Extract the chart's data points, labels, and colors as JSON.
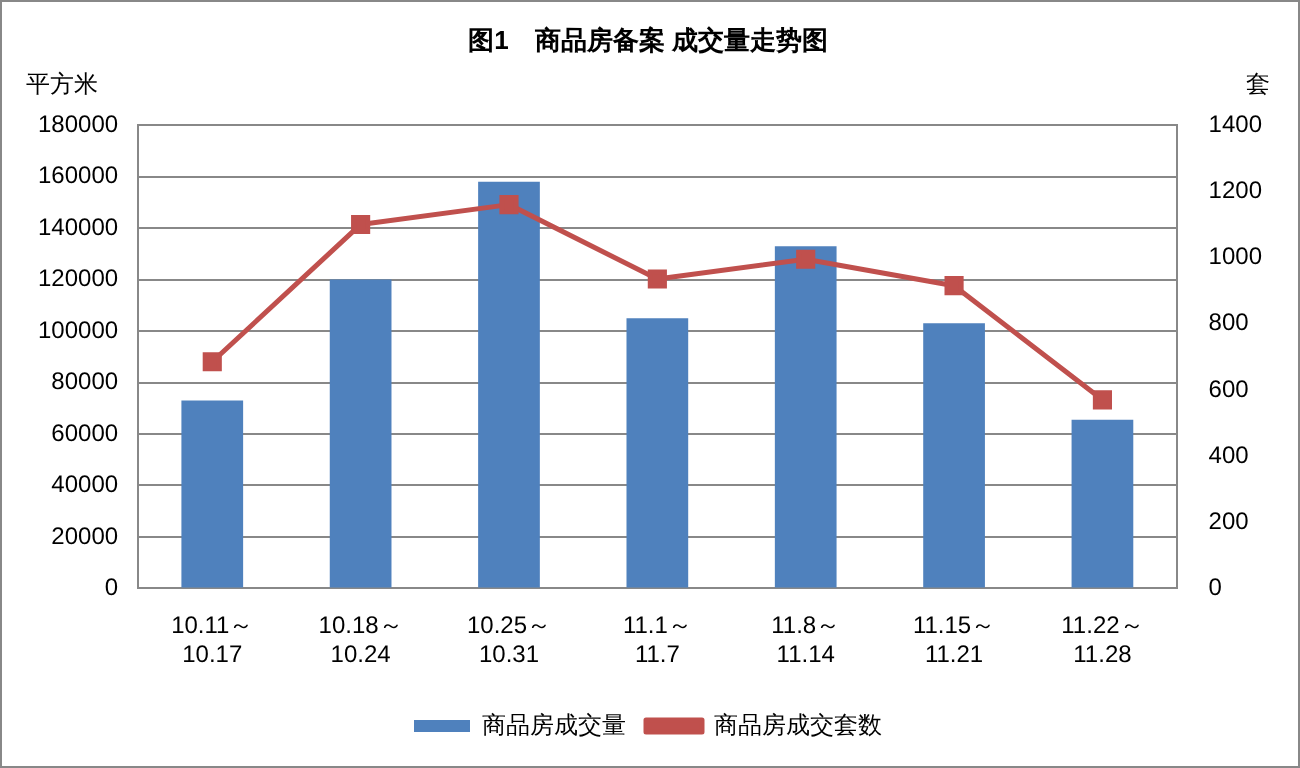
{
  "chart_data": {
    "type": "bar",
    "title": "图1　商品房备案 成交量走势图",
    "ylabel": "平方米",
    "y2label": "套",
    "categories": [
      "10.11～\n10.17",
      "10.18～\n10.24",
      "10.25～\n10.31",
      "11.1～\n11.7",
      "11.8～\n11.14",
      "11.15～\n11.21",
      "11.22～\n11.28"
    ],
    "series": [
      {
        "name": "商品房成交量",
        "color": "#4f81bd",
        "values": [
          73000,
          120000,
          158000,
          105000,
          133000,
          103000,
          65500
        ]
      },
      {
        "name": "商品房成交套数",
        "type": "line",
        "axis": "y2",
        "color": "#c0504d",
        "marker": "square",
        "values": [
          685,
          1100,
          1160,
          935,
          995,
          915,
          570
        ]
      }
    ],
    "ylim": [
      0,
      180000
    ],
    "yticks": [
      0,
      20000,
      40000,
      60000,
      80000,
      100000,
      120000,
      140000,
      160000,
      180000
    ],
    "y2lim": [
      0,
      1400
    ],
    "y2ticks": [
      0,
      200,
      400,
      600,
      800,
      1000,
      1200,
      1400
    ],
    "grid": "y",
    "legend": "bottom"
  }
}
